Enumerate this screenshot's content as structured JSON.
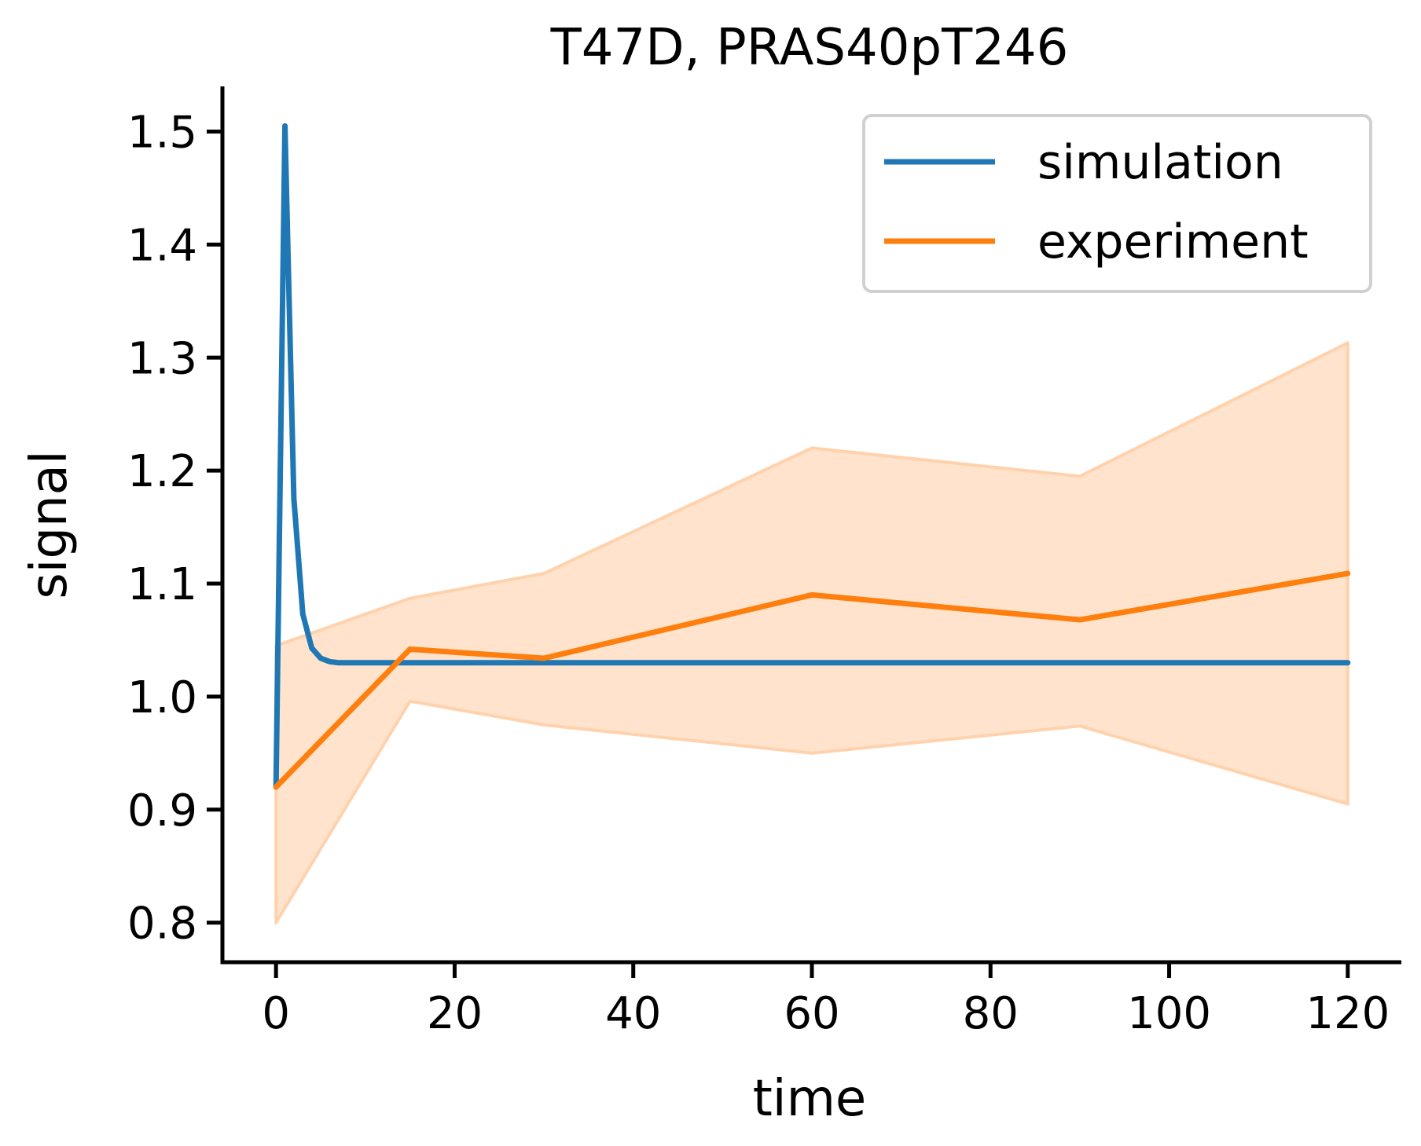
{
  "chart_data": {
    "type": "line",
    "title": "T47D, PRAS40pT246",
    "xlabel": "time",
    "ylabel": "signal",
    "xlim": [
      -6,
      126
    ],
    "ylim": [
      0.765,
      1.54
    ],
    "xticks": [
      0,
      20,
      40,
      60,
      80,
      100,
      120
    ],
    "xtick_labels": [
      "0",
      "20",
      "40",
      "60",
      "80",
      "100",
      "120"
    ],
    "yticks": [
      0.8,
      0.9,
      1.0,
      1.1,
      1.2,
      1.3,
      1.4,
      1.5
    ],
    "ytick_labels": [
      "0.8",
      "0.9",
      "1.0",
      "1.1",
      "1.2",
      "1.3",
      "1.4",
      "1.5"
    ],
    "grid": false,
    "legend_position": "top-right",
    "series": [
      {
        "name": "simulation",
        "color": "#1f77b4",
        "x": [
          0,
          1,
          2,
          3,
          4,
          5,
          6,
          7,
          8,
          10,
          15,
          20,
          30,
          40,
          60,
          80,
          100,
          120
        ],
        "y": [
          0.92,
          1.505,
          1.175,
          1.073,
          1.043,
          1.034,
          1.031,
          1.03,
          1.03,
          1.03,
          1.03,
          1.03,
          1.03,
          1.03,
          1.03,
          1.03,
          1.03,
          1.03
        ]
      },
      {
        "name": "experiment",
        "color": "#ff7f0e",
        "x": [
          0,
          15,
          30,
          60,
          90,
          120
        ],
        "y": [
          0.92,
          1.042,
          1.034,
          1.09,
          1.068,
          1.109
        ],
        "band_lower": [
          0.8,
          0.996,
          0.975,
          0.95,
          0.974,
          0.905
        ],
        "band_upper": [
          1.045,
          1.087,
          1.109,
          1.22,
          1.195,
          1.313
        ],
        "band_color": "#ffe3cc",
        "band_edge_color": "#ffd2ad"
      }
    ]
  }
}
